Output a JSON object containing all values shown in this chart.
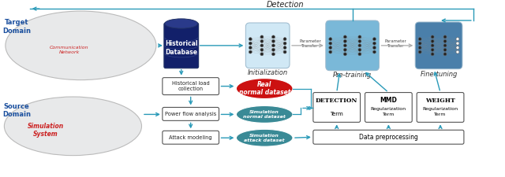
{
  "fig_width": 6.4,
  "fig_height": 2.25,
  "dpi": 100,
  "bg_color": "#ffffff",
  "teal_color": "#3a8a96",
  "dark_teal": "#2a6a76",
  "light_blue_nn": "#d0e8f5",
  "mid_blue_nn": "#7ab8d8",
  "dark_blue_nn": "#4a7faa",
  "red_dataset": "#cc1111",
  "arrow_color": "#2a9ab8",
  "text_blue": "#1a4f9e",
  "sim_red": "#cc2222",
  "database_top": "#2a3a8a",
  "database_body": "#12206a",
  "detection_label": "Detection",
  "target_domain_label": "Target\nDomain",
  "source_domain_label": "Source\nDomain",
  "sim_system_label": "Simulation\nSystem",
  "hist_db_label": "Historical\nDatabase",
  "initialization_label": "Initialization",
  "pretraining_label": "Pre-training",
  "finetuning_label": "Fine-tuning",
  "hist_load_label": "Historical load\ncollection",
  "power_flow_label": "Power flow analysis",
  "attack_model_label": "Attack modeling",
  "real_normal_label": "Real\nnormal dataset",
  "sim_normal_label": "Simulation\nnormal dataset",
  "sim_attack_label": "Simulation\nattack dataset",
  "data_preproc_label": "Data preprocessing",
  "param_transfer_label": "Parameter\nTransfer",
  "comm_network_label": "Communication\nNetwork"
}
